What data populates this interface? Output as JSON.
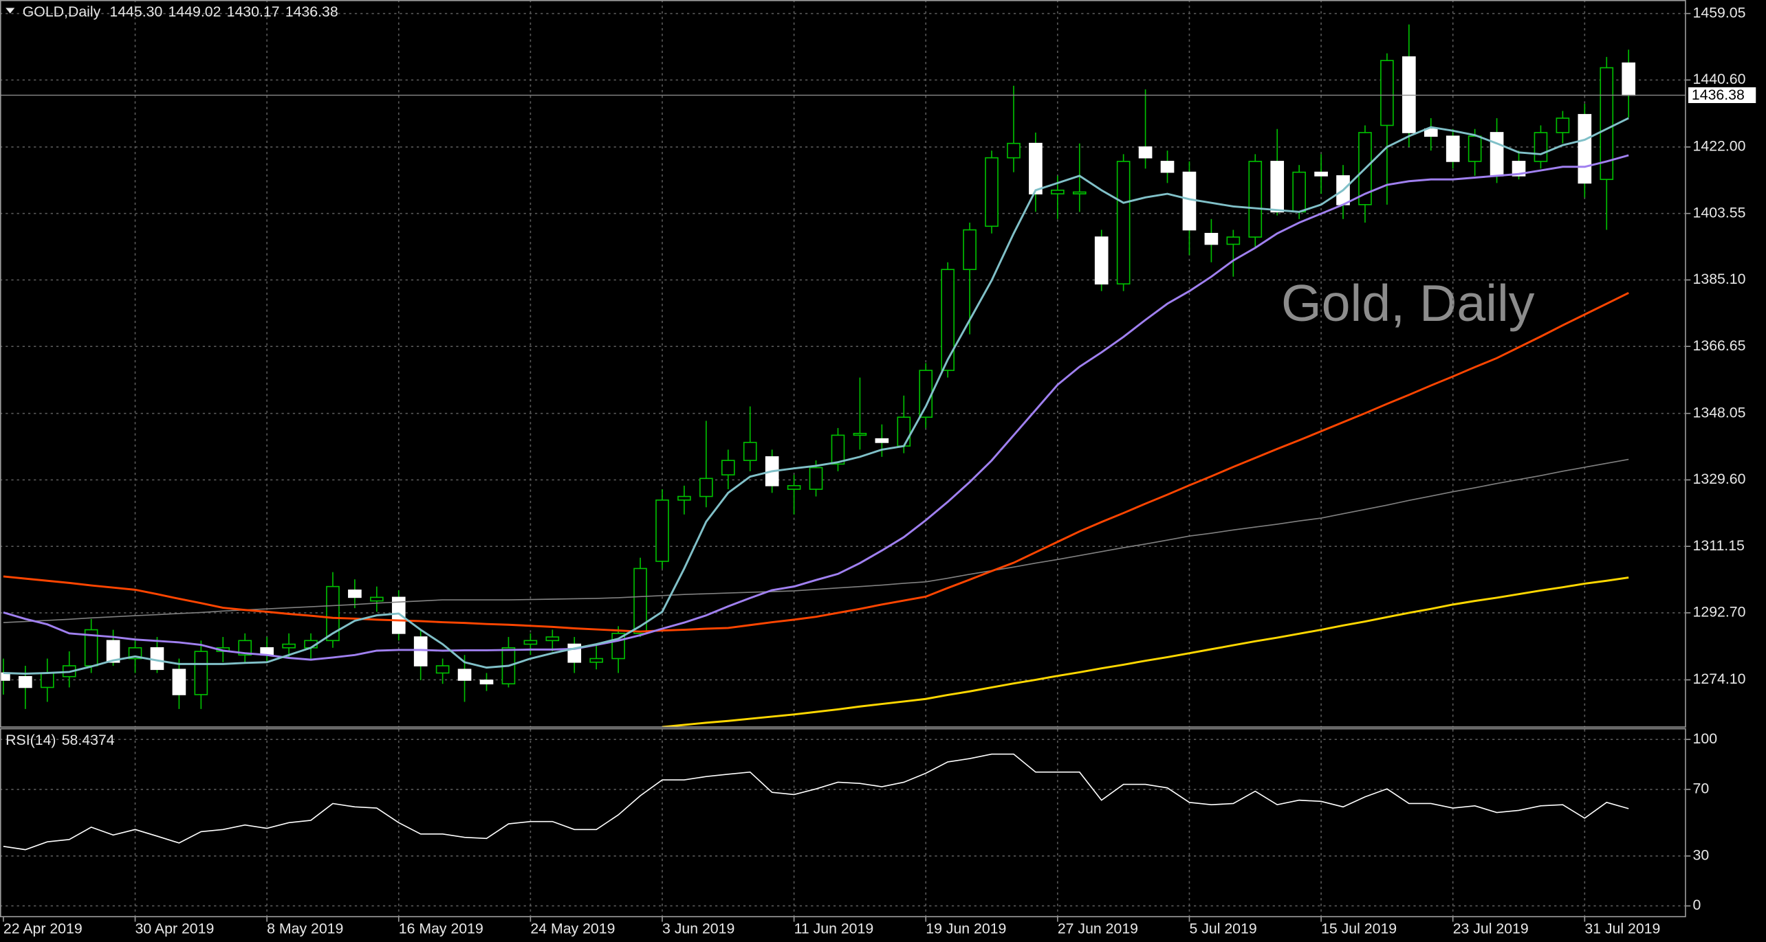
{
  "header": {
    "symbol": "GOLD,Daily",
    "quote": [
      "1445.30",
      "1449.02",
      "1430.17",
      "1436.38"
    ]
  },
  "watermark": "Gold, Daily",
  "chart_data": {
    "type": "candlestick",
    "categories": [
      "22 Apr 2019",
      null,
      null,
      null,
      null,
      null,
      "30 Apr 2019",
      null,
      null,
      null,
      null,
      null,
      "8 May 2019",
      null,
      null,
      null,
      null,
      null,
      "16 May 2019",
      null,
      null,
      null,
      null,
      null,
      "24 May 2019",
      null,
      null,
      null,
      null,
      null,
      "3 Jun 2019",
      null,
      null,
      null,
      null,
      null,
      "11 Jun 2019",
      null,
      null,
      null,
      null,
      null,
      "19 Jun 2019",
      null,
      null,
      null,
      null,
      null,
      "27 Jun 2019",
      null,
      null,
      null,
      null,
      null,
      "5 Jul 2019",
      null,
      null,
      null,
      null,
      null,
      "15 Jul 2019",
      null,
      null,
      null,
      null,
      null,
      "23 Jul 2019",
      null,
      null,
      null,
      null,
      null,
      "31 Jul 2019",
      null,
      null
    ],
    "open": [
      1276,
      1275,
      1272,
      1275,
      1278,
      1285,
      1280,
      1283,
      1277,
      1270,
      1282,
      1281,
      1283,
      1283,
      1283,
      1285,
      1299,
      1296,
      1297,
      1286,
      1276,
      1277,
      1274,
      1273,
      1284,
      1285,
      1284,
      1279,
      1280,
      1287,
      1307,
      1324,
      1325,
      1331,
      1335,
      1336,
      1327,
      1327,
      1334,
      1342,
      1341,
      1339,
      1347,
      1360,
      1388,
      1400,
      1419,
      1423,
      1409,
      1409,
      1397,
      1384,
      1422,
      1418,
      1415,
      1398,
      1395,
      1397,
      1418,
      1404,
      1415,
      1414,
      1406,
      1428,
      1447,
      1427,
      1425,
      1418,
      1426,
      1418,
      1418,
      1426,
      1431,
      1413,
      1445.3
    ],
    "high": [
      1280,
      1278,
      1280,
      1282,
      1291,
      1288,
      1285,
      1286,
      1280,
      1285,
      1286,
      1287,
      1286,
      1287,
      1287,
      1304,
      1302,
      1300,
      1299,
      1288,
      1280,
      1281,
      1276,
      1286,
      1287,
      1288,
      1286,
      1284,
      1289,
      1308,
      1327,
      1328,
      1346,
      1338,
      1350,
      1338,
      1331,
      1335,
      1344,
      1358,
      1345,
      1353,
      1362,
      1390,
      1401,
      1421,
      1439,
      1426,
      1414,
      1423,
      1399,
      1420,
      1438,
      1421,
      1418,
      1402,
      1399,
      1420,
      1427,
      1417,
      1420,
      1417,
      1428,
      1448,
      1456,
      1430,
      1427,
      1427,
      1430,
      1421,
      1428,
      1432,
      1434,
      1447,
      1449.02
    ],
    "low": [
      1270,
      1266,
      1268,
      1272,
      1276,
      1278,
      1276,
      1276,
      1266,
      1266,
      1279,
      1279,
      1279,
      1280,
      1280,
      1283,
      1294,
      1293,
      1285,
      1274,
      1273,
      1268,
      1271,
      1272,
      1281,
      1282,
      1276,
      1277,
      1276,
      1286,
      1305,
      1320,
      1322,
      1327,
      1332,
      1326,
      1320,
      1325,
      1332,
      1338,
      1336,
      1337,
      1344,
      1358,
      1370,
      1398,
      1415,
      1404,
      1402,
      1404,
      1382,
      1382,
      1416,
      1412,
      1392,
      1390,
      1386,
      1394,
      1403,
      1402,
      1409,
      1402,
      1401,
      1406,
      1422,
      1421,
      1416,
      1414,
      1412,
      1413,
      1416,
      1423,
      1408,
      1399,
      1430.17
    ],
    "close": [
      1274,
      1272,
      1276,
      1278,
      1288,
      1279,
      1283,
      1277,
      1270,
      1282,
      1283,
      1285,
      1281,
      1284,
      1285,
      1300,
      1297,
      1297,
      1287,
      1278,
      1278,
      1274,
      1273,
      1283,
      1285,
      1286,
      1279,
      1280,
      1287,
      1305,
      1324,
      1325,
      1330,
      1335,
      1340,
      1328,
      1328,
      1333,
      1342,
      1342.5,
      1340,
      1347,
      1360,
      1388,
      1399,
      1419,
      1423,
      1409,
      1410,
      1409.5,
      1384,
      1418,
      1419,
      1415,
      1399,
      1395,
      1397,
      1418,
      1404,
      1415,
      1414,
      1406,
      1426,
      1446,
      1426,
      1425,
      1418,
      1425,
      1414,
      1414,
      1426,
      1430,
      1412,
      1444,
      1436.38
    ],
    "bull_color": "#000000",
    "bear_color": "#ffffff",
    "wick_color": "#00c000",
    "ylim": [
      1261.0,
      1462.8
    ],
    "yticks": [
      {
        "value": 1274.1,
        "label": "1274.10"
      },
      {
        "value": 1292.7,
        "label": "1292.70"
      },
      1311.15,
      {
        "value": 1329.6,
        "label": "1329.60"
      },
      1348.05,
      1366.65,
      {
        "value": 1385.1,
        "label": "1385.10"
      },
      1403.55,
      {
        "value": 1422,
        "label": "1422.00"
      },
      {
        "value": 1440.6,
        "label": "1440.60"
      },
      1459.05
    ],
    "grid": true,
    "series": [
      {
        "color": "#808080",
        "values": [
          1290.0,
          1290.3,
          1290.6,
          1290.9,
          1291.3,
          1291.6,
          1291.9,
          1292.2,
          1292.5,
          1292.8,
          1293.2,
          1293.5,
          1293.8,
          1294.1,
          1294.4,
          1294.7,
          1295.0,
          1295.4,
          1295.7,
          1296.0,
          1296.3,
          1296.3,
          1296.3,
          1296.3,
          1296.4,
          1296.5,
          1296.6,
          1296.7,
          1296.9,
          1297.2,
          1297.5,
          1297.8,
          1298.0,
          1298.2,
          1298.4,
          1298.6,
          1298.8,
          1299.2,
          1299.6,
          1300.0,
          1300.4,
          1300.9,
          1301.3,
          1302.3,
          1303.4,
          1304.4,
          1305.4,
          1306.5,
          1307.5,
          1308.6,
          1309.7,
          1310.8,
          1311.8,
          1312.9,
          1314.0,
          1314.8,
          1315.7,
          1316.5,
          1317.3,
          1318.2,
          1319.0,
          1320.2,
          1321.4,
          1322.6,
          1323.9,
          1325.1,
          1326.3,
          1327.4,
          1328.6,
          1329.7,
          1330.8,
          1332.0,
          1333.1,
          1334.2,
          1335.3
        ]
      },
      {
        "color": "#ffd700",
        "values": [
          null,
          null,
          null,
          null,
          null,
          null,
          null,
          null,
          null,
          null,
          null,
          null,
          null,
          null,
          null,
          null,
          null,
          null,
          null,
          null,
          null,
          null,
          null,
          null,
          null,
          null,
          null,
          null,
          null,
          null,
          1261.0,
          1261.6,
          1262.2,
          1262.7,
          1263.3,
          1263.9,
          1264.5,
          1265.2,
          1265.9,
          1266.7,
          1267.4,
          1268.1,
          1268.8,
          1269.9,
          1270.9,
          1272.0,
          1273.1,
          1274.1,
          1275.2,
          1276.2,
          1277.3,
          1278.3,
          1279.4,
          1280.4,
          1281.5,
          1282.6,
          1283.7,
          1284.8,
          1285.8,
          1286.9,
          1288.0,
          1289.2,
          1290.3,
          1291.5,
          1292.7,
          1293.8,
          1295.0,
          1296.0,
          1296.9,
          1297.9,
          1298.9,
          1299.8,
          1300.8,
          1301.6,
          1302.5
        ]
      },
      {
        "color": "#ff4500",
        "values": [
          1302.8,
          1302.2,
          1301.6,
          1301.0,
          1300.3,
          1299.7,
          1299.1,
          1297.9,
          1296.6,
          1295.4,
          1294.1,
          1293.5,
          1293.0,
          1292.4,
          1291.9,
          1291.3,
          1291.1,
          1290.8,
          1290.6,
          1290.4,
          1290.1,
          1289.9,
          1289.6,
          1289.4,
          1289.1,
          1288.8,
          1288.4,
          1288.1,
          1287.8,
          1287.5,
          1287.8,
          1288.0,
          1288.3,
          1288.5,
          1289.3,
          1290.1,
          1290.8,
          1291.6,
          1292.7,
          1293.8,
          1295.0,
          1296.1,
          1297.2,
          1299.6,
          1301.9,
          1304.3,
          1306.6,
          1309.5,
          1312.4,
          1315.3,
          1317.9,
          1320.4,
          1323.0,
          1325.5,
          1328.1,
          1330.6,
          1333.2,
          1335.7,
          1338.2,
          1340.6,
          1343.1,
          1345.6,
          1348.1,
          1350.7,
          1353.2,
          1355.8,
          1358.3,
          1360.9,
          1363.4,
          1366.4,
          1369.4,
          1372.5,
          1375.5,
          1378.5,
          1381.5
        ]
      },
      {
        "color": "#a080f0",
        "values": [
          1292.8,
          1291,
          1289.5,
          1287,
          1286.5,
          1286,
          1285.3,
          1284.9,
          1284.5,
          1283.8,
          1282.2,
          1281.5,
          1281,
          1280.2,
          1279.7,
          1280.3,
          1281,
          1282.2,
          1282.4,
          1282.4,
          1282.2,
          1282.3,
          1282.3,
          1282.4,
          1282.5,
          1282.5,
          1282.7,
          1283.8,
          1285.0,
          1286.5,
          1288.3,
          1290.0,
          1292.0,
          1294.5,
          1296.8,
          1299.0,
          1300.0,
          1301.8,
          1303.5,
          1306.5,
          1310,
          1313.7,
          1318.4,
          1323.5,
          1329,
          1335,
          1342,
          1349,
          1356,
          1361,
          1365,
          1369.3,
          1374,
          1378.5,
          1382,
          1386,
          1390.5,
          1394,
          1398,
          1401,
          1403.5,
          1406,
          1409,
          1411.5,
          1412.5,
          1413,
          1413,
          1413.5,
          1414,
          1414.5,
          1415.5,
          1416.5,
          1416.5,
          1418,
          1419.7
        ]
      },
      {
        "color": "#80c0c8",
        "values": [
          1276,
          1275.8,
          1276,
          1276.3,
          1277.8,
          1279.5,
          1280.6,
          1279.5,
          1278.5,
          1278.5,
          1278.5,
          1278.8,
          1279,
          1281,
          1283,
          1287,
          1290.5,
          1292,
          1292.5,
          1288,
          1284,
          1279,
          1277.5,
          1278,
          1280,
          1281.5,
          1282.8,
          1284,
          1285.5,
          1289,
          1293,
          1305,
          1318,
          1326,
          1330.5,
          1332,
          1332.8,
          1333.5,
          1334.5,
          1336,
          1338,
          1339,
          1350,
          1363,
          1374,
          1385,
          1398,
          1410,
          1412,
          1414,
          1410,
          1406.5,
          1408,
          1409,
          1407.5,
          1406.5,
          1405.5,
          1405,
          1404.5,
          1404,
          1406,
          1410,
          1416,
          1422,
          1425,
          1427.5,
          1426.5,
          1425.3,
          1423,
          1420.5,
          1420,
          1422.5,
          1424,
          1427,
          1430
        ]
      }
    ],
    "rsi": {
      "label": "RSI(14)",
      "color": "#ffffff",
      "values": [
        35.8,
        33.8,
        38.5,
        39.9,
        47.3,
        42.6,
        45.9,
        41.9,
        37.8,
        44.6,
        45.9,
        48.6,
        46.6,
        50,
        51.4,
        61.5,
        59.5,
        58.8,
        50,
        43.2,
        43.2,
        41.2,
        40.5,
        49.3,
        50.7,
        50.7,
        45.9,
        45.9,
        54.7,
        66.2,
        75.7,
        75.7,
        77.7,
        79.1,
        80.4,
        68.2,
        66.9,
        70.3,
        74.3,
        73.6,
        71.6,
        74.3,
        79.7,
        86.5,
        88.5,
        91.2,
        91.2,
        80.4,
        80.4,
        80.4,
        63.5,
        73,
        73,
        70.9,
        62.2,
        60.8,
        61.5,
        68.9,
        60.8,
        63.5,
        62.8,
        59.5,
        65.5,
        70.3,
        61.5,
        61.5,
        58.8,
        60.1,
        56.1,
        57.4,
        60.1,
        60.8,
        52.7,
        62.2,
        58.4374
      ],
      "ylim": [
        -6.8,
        106.1
      ],
      "yticks": [
        0,
        30,
        70,
        100
      ]
    }
  }
}
